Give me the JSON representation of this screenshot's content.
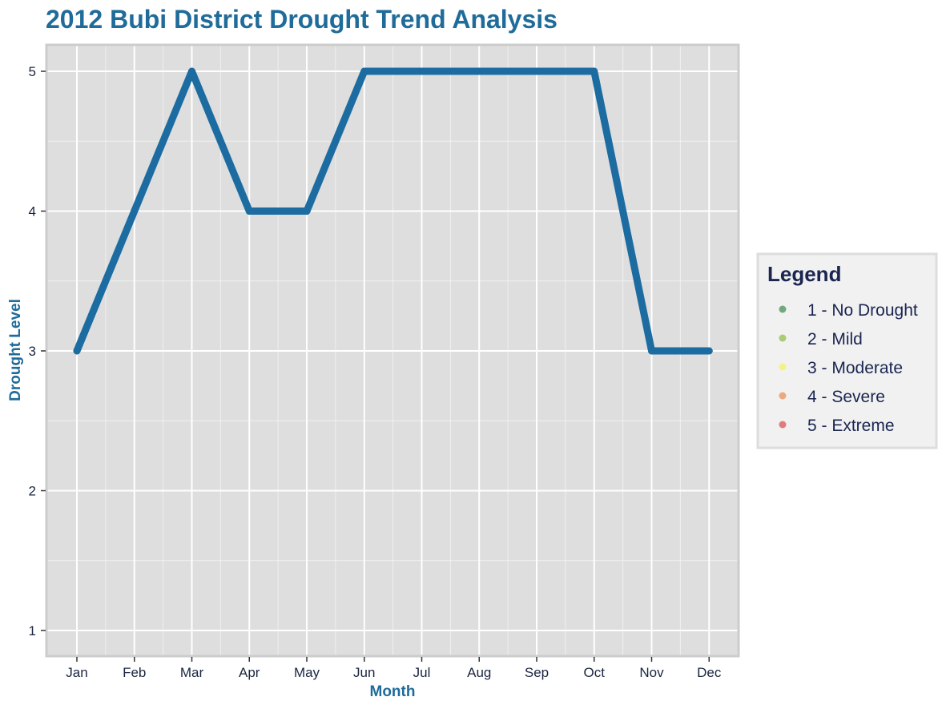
{
  "chart_data": {
    "type": "line",
    "title": "2012 Bubi District Drought Trend Analysis",
    "xlabel": "Month",
    "ylabel": "Drought Level",
    "categories": [
      "Jan",
      "Feb",
      "Mar",
      "Apr",
      "May",
      "Jun",
      "Jul",
      "Aug",
      "Sep",
      "Oct",
      "Nov",
      "Dec"
    ],
    "series": [
      {
        "values": [
          3,
          4,
          5,
          4,
          4,
          5,
          5,
          5,
          5,
          5,
          3,
          3
        ],
        "color": "#1c6ca1"
      }
    ],
    "yticks": [
      1,
      2,
      3,
      4,
      5
    ],
    "ylim": [
      1,
      5
    ],
    "grid": true,
    "legend": {
      "title": "Legend",
      "position": "right",
      "items": [
        {
          "label": "1 - No Drought",
          "color": "#3a8a4f"
        },
        {
          "label": "2 - Mild",
          "color": "#8dbb3f"
        },
        {
          "label": "3 - Moderate",
          "color": "#f4f25a"
        },
        {
          "label": "4 - Severe",
          "color": "#ea8a4e"
        },
        {
          "label": "5 - Extreme",
          "color": "#d94a4a"
        }
      ]
    },
    "colors": {
      "panel_background": "#dedede",
      "panel_border": "#cccccc",
      "grid_major": "#ffffff",
      "legend_background": "#f1f1f1",
      "legend_border": "#dddddd"
    }
  }
}
